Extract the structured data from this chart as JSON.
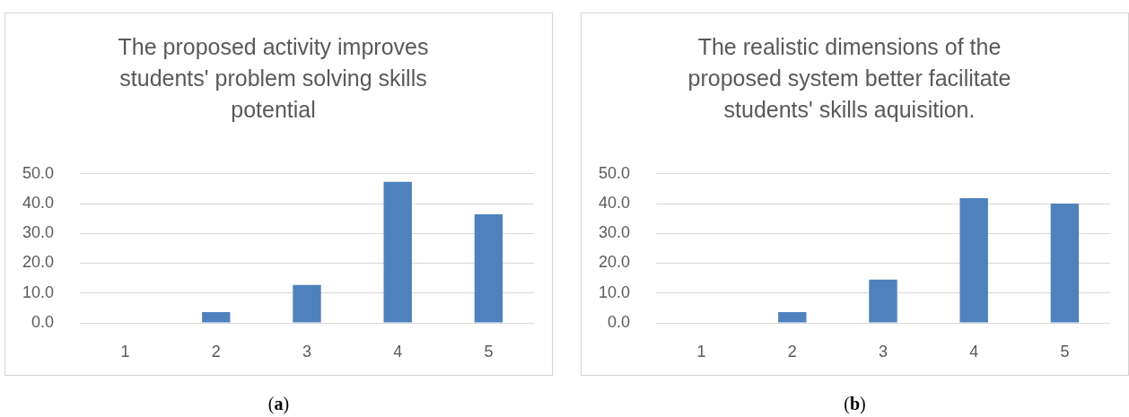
{
  "chart_data": [
    {
      "type": "bar",
      "title": "The proposed activity improves students' problem solving skills potential",
      "categories": [
        "1",
        "2",
        "3",
        "4",
        "5"
      ],
      "values": [
        0,
        3.6,
        12.7,
        47.3,
        36.4
      ],
      "color": "#4f81bd",
      "ylim": [
        0,
        50
      ],
      "yticks": [
        {
          "value": 0,
          "label": "0.0"
        },
        {
          "value": 10,
          "label": "10.0"
        },
        {
          "value": 20,
          "label": "20.0"
        },
        {
          "value": 30,
          "label": "30.0"
        },
        {
          "value": 40,
          "label": "40.0"
        },
        {
          "value": 50,
          "label": "50.0"
        }
      ],
      "grid": "y",
      "annotations": [
        "(a)"
      ]
    },
    {
      "type": "bar",
      "title": "The realistic dimensions of the proposed system better facilitate students' skills aquisition.",
      "categories": [
        "1",
        "2",
        "3",
        "4",
        "5"
      ],
      "values": [
        0,
        3.6,
        14.5,
        41.8,
        40.0
      ],
      "color": "#4f81bd",
      "ylim": [
        0,
        50
      ],
      "yticks": [
        {
          "value": 0,
          "label": "0.0"
        },
        {
          "value": 10,
          "label": "10.0"
        },
        {
          "value": 20,
          "label": "20.0"
        },
        {
          "value": 30,
          "label": "30.0"
        },
        {
          "value": 40,
          "label": "40.0"
        },
        {
          "value": 50,
          "label": "50.0"
        }
      ],
      "grid": "y",
      "annotations": [
        "(b)"
      ]
    }
  ]
}
